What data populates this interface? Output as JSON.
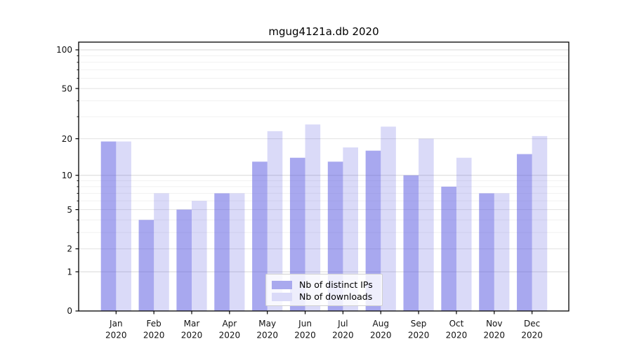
{
  "title": "mgug4121a.db 2020",
  "legend": {
    "items": [
      {
        "label": "Nb of distinct IPs",
        "color": "#a9a9ee"
      },
      {
        "label": "Nb of downloads",
        "color": "#dadaf8"
      }
    ],
    "position": "lower center"
  },
  "colors": {
    "bar_distinct_ips_fill": "rgba(85,85,224,0.51)",
    "bar_downloads_fill": "rgba(85,85,224,0.22)",
    "grid_decade": "#d8d8d8",
    "grid_labeled": "#e2e2e2",
    "grid_minor": "#f1f1f1",
    "axis": "#000000",
    "tick_text": "#111111"
  },
  "chart_data": {
    "type": "bar",
    "title": "mgug4121a.db 2020",
    "categories": [
      "Jan 2020",
      "Feb 2020",
      "Mar 2020",
      "Apr 2020",
      "May 2020",
      "Jun 2020",
      "Jul 2020",
      "Aug 2020",
      "Sep 2020",
      "Oct 2020",
      "Nov 2020",
      "Dec 2020"
    ],
    "series": [
      {
        "name": "Nb of distinct IPs",
        "values": [
          19,
          4,
          5,
          7,
          13,
          14,
          13,
          16,
          10,
          8,
          7,
          15
        ]
      },
      {
        "name": "Nb of downloads",
        "values": [
          19,
          7,
          6,
          7,
          23,
          26,
          17,
          25,
          20,
          14,
          7,
          21
        ]
      }
    ],
    "xlabel": "",
    "ylabel": "",
    "yscale": "log1p",
    "ylim": [
      0,
      116
    ],
    "y_ticks": [
      0,
      1,
      2,
      5,
      10,
      20,
      50,
      100
    ],
    "y_minor_ticks": [
      3,
      4,
      6,
      7,
      8,
      9,
      30,
      40,
      60,
      70,
      80,
      90
    ],
    "grid": true,
    "legend_position": "lower center"
  }
}
